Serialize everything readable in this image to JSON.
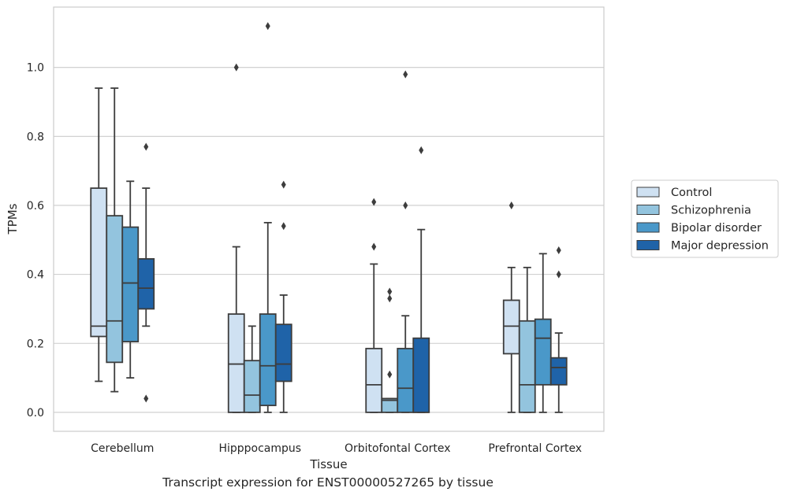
{
  "caption": "Transcript expression for ENST00000527265 by tissue",
  "chart_data": {
    "type": "box",
    "xlabel": "Tissue",
    "ylabel": "TPMs",
    "ylim": [
      -0.055,
      1.175
    ],
    "yticks": [
      "0.0",
      "0.2",
      "0.4",
      "0.6",
      "0.8",
      "1.0"
    ],
    "grid": "horizontal",
    "legend_position": "outside-right",
    "categories": [
      "Cerebellum",
      "Hipppocampus",
      "Orbitofontal Cortex",
      "Prefrontal Cortex"
    ],
    "series": [
      {
        "name": "Control",
        "color": "#cfe1f2",
        "boxes": [
          {
            "whislo": 0.09,
            "q1": 0.22,
            "med": 0.25,
            "q3": 0.65,
            "whishi": 0.94,
            "fliers": []
          },
          {
            "whislo": 0.0,
            "q1": 0.0,
            "med": 0.14,
            "q3": 0.285,
            "whishi": 0.48,
            "fliers": [
              1.0
            ]
          },
          {
            "whislo": 0.0,
            "q1": 0.0,
            "med": 0.08,
            "q3": 0.185,
            "whishi": 0.43,
            "fliers": [
              0.61,
              0.48
            ]
          },
          {
            "whislo": 0.0,
            "q1": 0.17,
            "med": 0.25,
            "q3": 0.325,
            "whishi": 0.42,
            "fliers": [
              0.6
            ]
          }
        ]
      },
      {
        "name": "Schizophrenia",
        "color": "#93c4de",
        "boxes": [
          {
            "whislo": 0.06,
            "q1": 0.145,
            "med": 0.265,
            "q3": 0.57,
            "whishi": 0.94,
            "fliers": []
          },
          {
            "whislo": 0.0,
            "q1": 0.0,
            "med": 0.05,
            "q3": 0.15,
            "whishi": 0.25,
            "fliers": []
          },
          {
            "whislo": 0.0,
            "q1": 0.0,
            "med": 0.035,
            "q3": 0.04,
            "whishi": 0.04,
            "fliers": [
              0.35,
              0.33,
              0.11
            ]
          },
          {
            "whislo": 0.0,
            "q1": 0.0,
            "med": 0.08,
            "q3": 0.265,
            "whishi": 0.42,
            "fliers": []
          }
        ]
      },
      {
        "name": "Bipolar disorder",
        "color": "#4a98c9",
        "boxes": [
          {
            "whislo": 0.1,
            "q1": 0.205,
            "med": 0.375,
            "q3": 0.537,
            "whishi": 0.67,
            "fliers": []
          },
          {
            "whislo": 0.0,
            "q1": 0.02,
            "med": 0.135,
            "q3": 0.285,
            "whishi": 0.55,
            "fliers": [
              1.12
            ]
          },
          {
            "whislo": 0.0,
            "q1": 0.0,
            "med": 0.07,
            "q3": 0.185,
            "whishi": 0.28,
            "fliers": [
              0.98,
              0.6
            ]
          },
          {
            "whislo": 0.0,
            "q1": 0.08,
            "med": 0.215,
            "q3": 0.27,
            "whishi": 0.46,
            "fliers": []
          }
        ]
      },
      {
        "name": "Major depression",
        "color": "#1f63a8",
        "boxes": [
          {
            "whislo": 0.25,
            "q1": 0.3,
            "med": 0.36,
            "q3": 0.445,
            "whishi": 0.65,
            "fliers": [
              0.77,
              0.04
            ]
          },
          {
            "whislo": 0.0,
            "q1": 0.09,
            "med": 0.14,
            "q3": 0.255,
            "whishi": 0.34,
            "fliers": [
              0.66,
              0.54
            ]
          },
          {
            "whislo": 0.0,
            "q1": 0.0,
            "med": 0.0,
            "q3": 0.215,
            "whishi": 0.53,
            "fliers": [
              0.76
            ]
          },
          {
            "whislo": 0.0,
            "q1": 0.08,
            "med": 0.13,
            "q3": 0.158,
            "whishi": 0.23,
            "fliers": [
              0.47,
              0.4
            ]
          }
        ]
      }
    ]
  }
}
